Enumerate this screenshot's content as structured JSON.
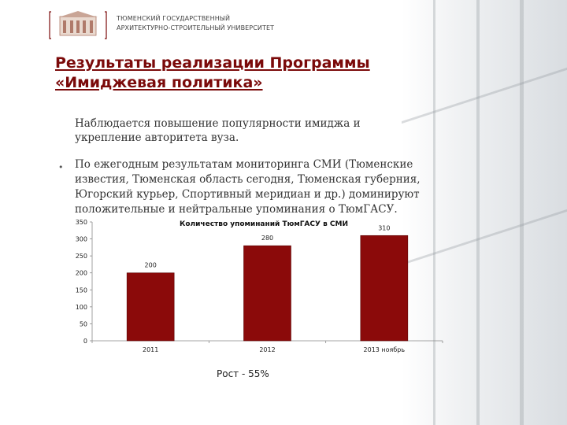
{
  "header": {
    "university_line1": "ТЮМЕНСКИЙ ГОСУДАРСТВЕННЫЙ",
    "university_line2": "АРХИТЕКТУРНО-СТРОИТЕЛЬНЫЙ УНИВЕРСИТЕТ"
  },
  "slide": {
    "title_line1": "Результаты  реализации Программы",
    "title_line2": "«Имиджевая политика»",
    "paragraph": "Наблюдается повышение популярности имиджа и укрепление авторитета вуза.",
    "bullet_symbol": "•",
    "bullet_text": "По ежегодным результатам мониторинга СМИ (Тюменские известия, Тюменская область сегодня, Тюменская губерния, Югорский курьер, Спортивный меридиан и др.) доминируют положительные и  нейтральные упоминания о ТюмГАСУ.",
    "growth_note": "Рост  - 55%"
  },
  "colors": {
    "title": "#7b0a0a",
    "bar": "#8b0a0a"
  },
  "chart_data": {
    "type": "bar",
    "title": "Количество  упоминаний ТюмГАСУ в  СМИ",
    "categories": [
      "2011",
      "2012",
      "2013 ноябрь"
    ],
    "values": [
      200,
      280,
      310
    ],
    "ylim": [
      0,
      350
    ],
    "yticks": [
      0,
      50,
      100,
      150,
      200,
      250,
      300,
      350
    ],
    "xlabel": "",
    "ylabel": "",
    "grid": false,
    "legend": "none"
  }
}
